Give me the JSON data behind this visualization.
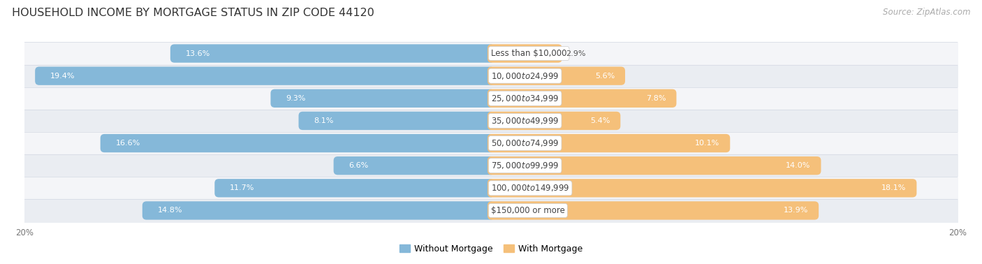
{
  "title": "HOUSEHOLD INCOME BY MORTGAGE STATUS IN ZIP CODE 44120",
  "source": "Source: ZipAtlas.com",
  "categories": [
    "Less than $10,000",
    "$10,000 to $24,999",
    "$25,000 to $34,999",
    "$35,000 to $49,999",
    "$50,000 to $74,999",
    "$75,000 to $99,999",
    "$100,000 to $149,999",
    "$150,000 or more"
  ],
  "without_mortgage": [
    13.6,
    19.4,
    9.3,
    8.1,
    16.6,
    6.6,
    11.7,
    14.8
  ],
  "with_mortgage": [
    2.9,
    5.6,
    7.8,
    5.4,
    10.1,
    14.0,
    18.1,
    13.9
  ],
  "color_without": "#85b8d9",
  "color_with": "#f5c07a",
  "bg_light": "#f5f6f8",
  "bg_separator": "#e8eaee",
  "bar_height": 0.52,
  "xlim": 20.0,
  "legend_labels": [
    "Without Mortgage",
    "With Mortgage"
  ],
  "title_fontsize": 11.5,
  "source_fontsize": 8.5,
  "value_fontsize": 8,
  "category_fontsize": 8.5
}
